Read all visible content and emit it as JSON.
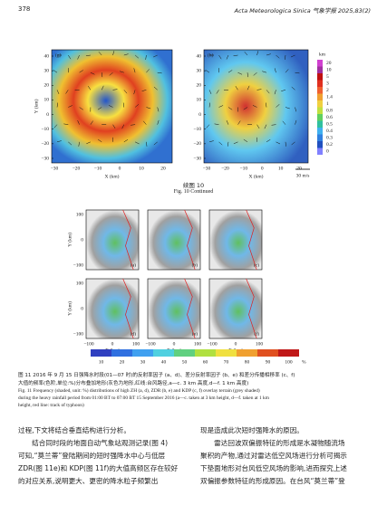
{
  "header": {
    "page": "378",
    "journal": "Acta Meteorologica Sinica  气象学报  2025,83(2)"
  },
  "fig10": {
    "panels": [
      "(g)",
      "(h)"
    ],
    "yticks": [
      "40",
      "30",
      "20",
      "10",
      "0",
      "−10",
      "−20",
      "−30"
    ],
    "xticks": [
      "−30",
      "−20",
      "−10",
      "0",
      "10",
      "20"
    ],
    "ylabel": "Y (km)",
    "xlabel": "X (km)",
    "colorbar_unit": "km",
    "colorbar_ticks": [
      "20",
      "10",
      "5",
      "3",
      "2",
      "1.4",
      "1",
      "0.8",
      "0.6",
      "0.5",
      "0.4",
      "0.3",
      "0.2",
      "0"
    ],
    "scale": "30 m/s",
    "caption_cn": "续图 10",
    "caption_en": "Fig. 10   Continued"
  },
  "fig11": {
    "panels": [
      "(a)",
      "(b)",
      "(c)",
      "(d)",
      "(e)",
      "(f)"
    ],
    "yticks": [
      "100",
      "0",
      "−100"
    ],
    "xticks": [
      "−100",
      "0",
      "100"
    ],
    "ylabel": "Y (km)",
    "xlabel": "X (km)",
    "colorbar_ticks": [
      "10",
      "20",
      "30",
      "40",
      "50",
      "60",
      "70",
      "80",
      "90",
      "100"
    ],
    "colorbar_unit": "%",
    "caption_cn": [
      "图 11   2016 年 9 月 15 日强降水时段(01—07 时)的反射率因子 (a、d)、差分反射率因子 (b、e) 和差分传播相移率 (c、f)",
      "大值的频率(色阶,单位:%)分布叠加地形(灰色为地形,红线:台风路径,a—c. 3 km 高度,d—f. 1 km 高度)"
    ],
    "caption_en": [
      "Fig. 11   Frequency (shaded, unit: %) distributions of high ZH (a, d), ZDR (b, e) and KDP (c, f) overlay terrain (grey shaded)",
      "during the heavy rainfall period from 01:00 BT to 07:00 BT 15 September 2016 (a—c. taken at 3 km height, d—f. taken at 1 km",
      "height, red line: track of typhoon)"
    ]
  },
  "body": {
    "left": [
      "过程,下文将结合垂直结构进行分析。",
      "　　结合同时段的地面自动气象站观测记录(图 4)",
      "可知,“莫兰蒂”登陆期间的短时强降水中心与低层",
      "ZDR(图 11e)和 KDP(图 11f)的大值高频区存在较好",
      "的对应关系,说明更大、更密的降水粒子频繁出"
    ],
    "right": [
      "现是造成此次短时强降水的原因。",
      "　　雷达回波双偏振特征的形成是水凝物随流场",
      "聚积的产物,通过对雷达低空风场进行分析可揭示",
      "下垫面地形对台风低空风场的影响,进而探究上述",
      "双偏振参数特征的形成原因。在台风“莫兰蒂”登"
    ]
  }
}
